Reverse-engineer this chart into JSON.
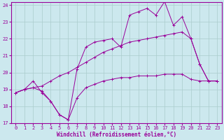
{
  "xlabel": "Windchill (Refroidissement éolien,°C)",
  "bg_color": "#cce8ee",
  "grid_color": "#aacccc",
  "line_color": "#990099",
  "xmin": 0,
  "xmax": 23,
  "ymin": 17,
  "ymax": 24,
  "yticks": [
    17,
    18,
    19,
    20,
    21,
    22,
    23,
    24
  ],
  "xticks": [
    0,
    1,
    2,
    3,
    4,
    5,
    6,
    7,
    8,
    9,
    10,
    11,
    12,
    13,
    14,
    15,
    16,
    17,
    18,
    19,
    20,
    21,
    22,
    23
  ],
  "line1_x": [
    0,
    1,
    2,
    3,
    4,
    5,
    6,
    7,
    8,
    9,
    10,
    11,
    12,
    13,
    14,
    15,
    16,
    17,
    18,
    19,
    20,
    21,
    22,
    23
  ],
  "line1_y": [
    18.8,
    19.0,
    19.1,
    18.9,
    18.3,
    17.5,
    17.2,
    18.5,
    19.1,
    19.3,
    19.5,
    19.6,
    19.7,
    19.7,
    19.8,
    19.8,
    19.8,
    19.9,
    19.9,
    19.9,
    19.6,
    19.5,
    19.5,
    19.5
  ],
  "line2_x": [
    0,
    1,
    2,
    3,
    4,
    5,
    6,
    7,
    8,
    9,
    10,
    11,
    12,
    13,
    14,
    15,
    16,
    17,
    18,
    19,
    20,
    21,
    22,
    23
  ],
  "line2_y": [
    18.8,
    19.0,
    19.1,
    19.2,
    19.5,
    19.8,
    20.0,
    20.3,
    20.6,
    20.9,
    21.2,
    21.4,
    21.6,
    21.8,
    21.9,
    22.0,
    22.1,
    22.2,
    22.3,
    22.4,
    22.0,
    20.5,
    19.5,
    19.5
  ],
  "line3_x": [
    0,
    1,
    2,
    3,
    4,
    5,
    6,
    7,
    8,
    9,
    10,
    11,
    12,
    13,
    14,
    15,
    16,
    17,
    18,
    19,
    20,
    21,
    22,
    23
  ],
  "line3_y": [
    18.8,
    19.0,
    19.5,
    18.8,
    18.3,
    17.5,
    17.2,
    20.2,
    21.5,
    21.8,
    21.9,
    22.0,
    21.5,
    23.4,
    23.6,
    23.8,
    23.4,
    24.2,
    22.8,
    23.3,
    22.0,
    20.5,
    19.5,
    19.5
  ]
}
